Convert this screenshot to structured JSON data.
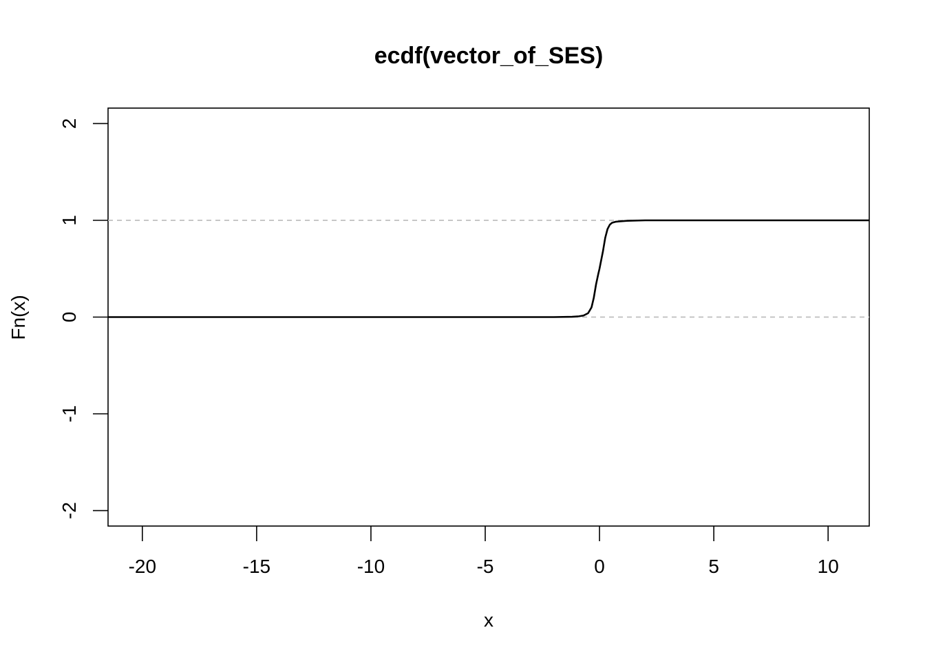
{
  "chart_data": {
    "type": "line",
    "title": "ecdf(vector_of_SES)",
    "xlabel": "x",
    "ylabel": "Fn(x)",
    "xlim": [
      -21.5,
      11.8
    ],
    "ylim": [
      -2.16,
      2.16
    ],
    "x_ticks": [
      -20,
      -15,
      -10,
      -5,
      0,
      5,
      10
    ],
    "x_tick_labels": [
      "-20",
      "-15",
      "-10",
      "-5",
      "0",
      "5",
      "10"
    ],
    "y_ticks": [
      -2,
      -1,
      0,
      1,
      2
    ],
    "y_tick_labels": [
      "-2",
      "-1",
      "0",
      "1",
      "2"
    ],
    "reference_lines": [
      {
        "y": 0,
        "style": "dashed",
        "color": "#bebebe"
      },
      {
        "y": 1,
        "style": "dashed",
        "color": "#bebebe"
      }
    ],
    "series": [
      {
        "color": "#000000",
        "x": [
          -21.5,
          -2.0,
          -1.2,
          -0.9,
          -0.7,
          -0.5,
          -0.35,
          -0.25,
          -0.15,
          -0.05,
          0.0,
          0.05,
          0.15,
          0.25,
          0.35,
          0.45,
          0.55,
          0.7,
          0.9,
          1.2,
          2.0,
          11.8
        ],
        "y": [
          0.0,
          0.0,
          0.003,
          0.008,
          0.016,
          0.04,
          0.1,
          0.2,
          0.34,
          0.45,
          0.5,
          0.56,
          0.68,
          0.82,
          0.91,
          0.955,
          0.975,
          0.985,
          0.99,
          0.995,
          1.0,
          1.0
        ]
      }
    ],
    "grid": false,
    "legend": "none"
  }
}
